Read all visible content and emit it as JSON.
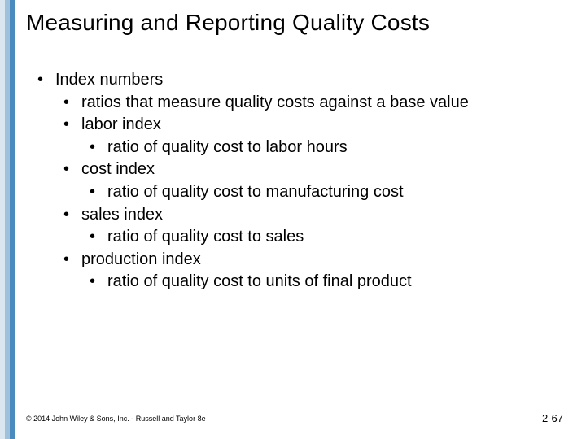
{
  "colors": {
    "stripe_light": "#dbe7f0",
    "stripe_mid": "#9fc1db",
    "stripe_dark": "#4a8bbd",
    "rule": "#4a8bbd",
    "text": "#000000",
    "background": "#ffffff"
  },
  "typography": {
    "title_fontsize": 28,
    "body_fontsize": 20,
    "footer_left_fontsize": 9,
    "footer_right_fontsize": 13,
    "font_family": "Arial"
  },
  "title": "Measuring and Reporting Quality Costs",
  "bullets": {
    "l1_0": "Index numbers",
    "l2_0": "ratios that measure quality costs against a base value",
    "l2_1": "labor index",
    "l3_1": "ratio of quality cost to labor hours",
    "l2_2": "cost index",
    "l3_2": "ratio of quality cost to manufacturing cost",
    "l2_3": "sales index",
    "l3_3": "ratio of quality cost to sales",
    "l2_4": "production index",
    "l3_4": "ratio of quality cost to units of final product"
  },
  "footer": {
    "copyright": "© 2014 John Wiley & Sons, Inc. - Russell and Taylor 8e",
    "page": "2-67"
  }
}
